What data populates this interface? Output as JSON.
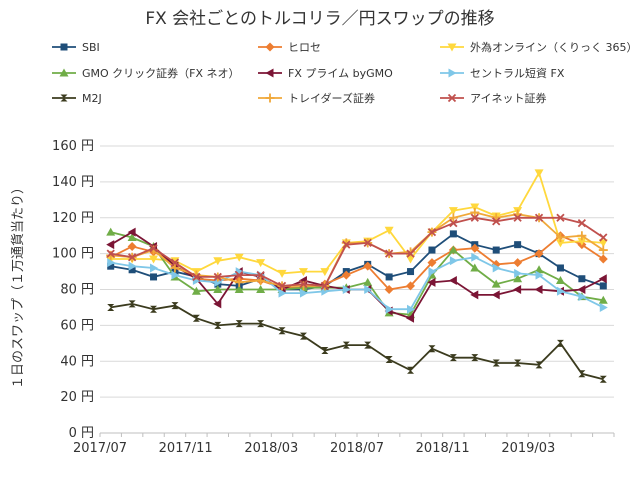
{
  "chart_data": {
    "type": "line",
    "title": "FX 会社ごとのトルコリラ／円スワップの推移",
    "ylabel": "１日のスワップ（１万通貨当たり）",
    "xlabel": "",
    "ylim": [
      0,
      160
    ],
    "y_ticks": [
      "0 円",
      "20 円",
      "40 円",
      "60 円",
      "80 円",
      "100 円",
      "120 円",
      "140 円",
      "160 円"
    ],
    "x_tick_labels": [
      "2017/07",
      "2017/11",
      "2018/03",
      "2018/07",
      "2018/11",
      "2019/03"
    ],
    "x_tick_indices": [
      0,
      4,
      8,
      12,
      16,
      20
    ],
    "n_points": 24,
    "grid": true,
    "legend_position": "top",
    "series": [
      {
        "name": "SBI",
        "color": "#1f4e79",
        "marker": "square",
        "values": [
          93,
          91,
          87,
          90,
          87,
          83,
          82,
          86,
          80,
          80,
          82,
          90,
          94,
          87,
          90,
          102,
          111,
          105,
          102,
          105,
          100,
          92,
          86,
          82
        ]
      },
      {
        "name": "ヒロセ",
        "color": "#ed7d31",
        "marker": "diamond",
        "values": [
          98,
          104,
          101,
          95,
          86,
          85,
          86,
          85,
          81,
          81,
          83,
          88,
          93,
          80,
          82,
          95,
          102,
          103,
          94,
          95,
          100,
          110,
          105,
          97
        ]
      },
      {
        "name": "外為オンライン（くりっく 365）",
        "color": "#ffd83d",
        "marker": "triangle-down",
        "values": [
          97,
          97,
          97,
          96,
          90,
          96,
          98,
          95,
          89,
          90,
          90,
          106,
          107,
          113,
          97,
          112,
          124,
          126,
          121,
          124,
          145,
          106,
          107,
          106
        ]
      },
      {
        "name": "GMO クリック証券（FX ネオ）",
        "color": "#70ad47",
        "marker": "triangle",
        "values": [
          112,
          109,
          104,
          87,
          79,
          80,
          80,
          80,
          80,
          81,
          81,
          81,
          84,
          67,
          66,
          88,
          102,
          92,
          83,
          86,
          91,
          85,
          76,
          74
        ]
      },
      {
        "name": "FX プライム byGMO",
        "color": "#7b1535",
        "marker": "triangle-left",
        "values": [
          105,
          112,
          104,
          93,
          86,
          72,
          90,
          87,
          80,
          85,
          82,
          80,
          80,
          68,
          64,
          84,
          85,
          77,
          77,
          80,
          80,
          79,
          80,
          86
        ]
      },
      {
        "name": "セントラル短資 FX",
        "color": "#7fc7e8",
        "marker": "triangle-right",
        "values": [
          95,
          93,
          92,
          88,
          85,
          84,
          90,
          88,
          78,
          78,
          79,
          80,
          80,
          69,
          69,
          90,
          96,
          98,
          92,
          89,
          88,
          79,
          76,
          70
        ]
      },
      {
        "name": "M2J",
        "color": "#3b3b1e",
        "marker": "hourglass",
        "values": [
          70,
          72,
          69,
          71,
          64,
          60,
          61,
          61,
          57,
          54,
          46,
          49,
          49,
          41,
          35,
          47,
          42,
          42,
          39,
          39,
          38,
          50,
          33,
          30
        ]
      },
      {
        "name": "トレイダーズ証券",
        "color": "#f0a839",
        "marker": "plus",
        "values": [
          99,
          98,
          102,
          92,
          88,
          87,
          84,
          85,
          82,
          82,
          82,
          106,
          106,
          100,
          101,
          112,
          120,
          123,
          120,
          122,
          120,
          109,
          110,
          102
        ]
      },
      {
        "name": "アイネット証券",
        "color": "#c0504d",
        "marker": "x",
        "values": [
          100,
          98,
          103,
          95,
          87,
          87,
          88,
          88,
          82,
          83,
          82,
          105,
          106,
          100,
          100,
          112,
          117,
          120,
          118,
          120,
          120,
          120,
          117,
          109
        ]
      }
    ]
  }
}
